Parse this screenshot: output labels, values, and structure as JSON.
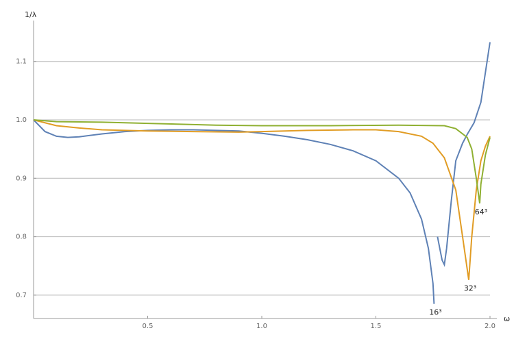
{
  "chart_data": {
    "type": "line",
    "x_label": "ω",
    "y_label": "1/λ",
    "xlim": [
      0,
      2.0
    ],
    "ylim": [
      0.66,
      1.17
    ],
    "xticks": [
      0.5,
      {
        "value": 1,
        "label": "1.0"
      },
      1.5,
      {
        "value": 2,
        "label": "2.0"
      }
    ],
    "yticks": [
      0.7,
      0.8,
      0.9,
      {
        "value": 1,
        "label": "1.0"
      },
      1.1
    ],
    "grid": true,
    "series": [
      {
        "name": "16³",
        "color": "#5e81b5",
        "x": [
          0,
          0.05,
          0.1,
          0.15,
          0.2,
          0.3,
          0.4,
          0.5,
          0.6,
          0.7,
          0.8,
          0.9,
          1.0,
          1.1,
          1.2,
          1.3,
          1.4,
          1.5,
          1.6,
          1.65,
          1.7,
          1.73,
          1.75,
          1.755,
          1.76,
          1.77,
          1.78,
          1.79,
          1.8,
          1.81,
          1.83,
          1.85,
          1.88,
          1.9,
          1.93,
          1.96,
          2.0
        ],
        "values": [
          1.0,
          0.98,
          0.972,
          0.97,
          0.971,
          0.976,
          0.98,
          0.982,
          0.983,
          0.983,
          0.982,
          0.981,
          0.977,
          0.972,
          0.966,
          0.958,
          0.947,
          0.93,
          0.9,
          0.875,
          0.83,
          0.78,
          0.72,
          0.685,
          null,
          0.8,
          0.78,
          0.76,
          0.752,
          0.78,
          0.86,
          0.93,
          0.96,
          0.975,
          0.995,
          1.03,
          1.133
        ]
      },
      {
        "name": "32³",
        "color": "#e19c24",
        "x": [
          0,
          0.1,
          0.2,
          0.3,
          0.5,
          0.7,
          0.9,
          1.0,
          1.2,
          1.4,
          1.5,
          1.6,
          1.7,
          1.75,
          1.8,
          1.85,
          1.88,
          1.907,
          1.92,
          1.94,
          1.96,
          1.98,
          2.0
        ],
        "values": [
          1.0,
          0.99,
          0.986,
          0.983,
          0.981,
          0.98,
          0.979,
          0.98,
          0.982,
          0.983,
          0.983,
          0.98,
          0.972,
          0.96,
          0.935,
          0.88,
          0.8,
          0.726,
          0.8,
          0.88,
          0.93,
          0.955,
          0.972
        ]
      },
      {
        "name": "64³",
        "color": "#8fb032",
        "x": [
          0,
          0.1,
          0.3,
          0.5,
          0.8,
          1.0,
          1.3,
          1.6,
          1.8,
          1.85,
          1.9,
          1.92,
          1.94,
          1.955,
          1.96,
          1.98,
          2.0
        ],
        "values": [
          1.0,
          0.997,
          0.996,
          0.994,
          0.991,
          0.99,
          0.99,
          0.991,
          0.99,
          0.985,
          0.97,
          0.95,
          0.9,
          0.857,
          0.89,
          0.94,
          0.97
        ]
      }
    ]
  }
}
